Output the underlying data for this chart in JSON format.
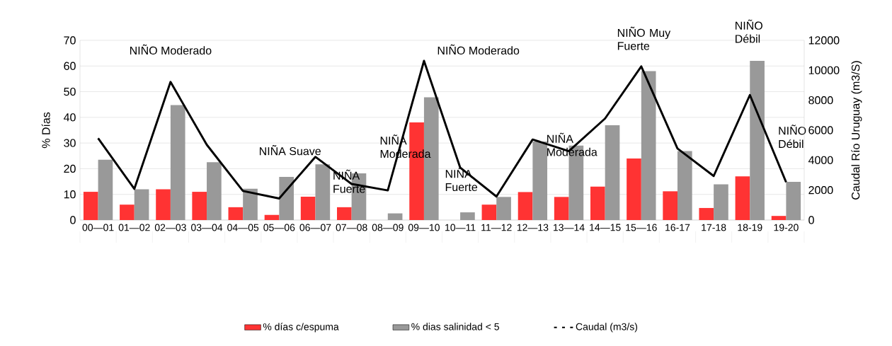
{
  "chart_data": {
    "type": "bar",
    "ylabel": "% Días",
    "y2label": "Caudal Río Uruguay  (m3/S)",
    "categories": [
      "00—01",
      "01—02",
      "02—03",
      "03—04",
      "04—05",
      "05—06",
      "06—07",
      "07—08",
      "08—09",
      "09—10",
      "10—11",
      "11—12",
      "12—13",
      "13—14",
      "14—15",
      "15—16",
      "16-17",
      "17-18",
      "18-19",
      "19-20"
    ],
    "series": [
      {
        "name": "% días c/espuma",
        "color": "#ff3333",
        "values": [
          11,
          6,
          12,
          11,
          5,
          2,
          9.1,
          5,
          null,
          38,
          null,
          6,
          10.9,
          9,
          13,
          24,
          11.2,
          4.7,
          17,
          1.6
        ]
      },
      {
        "name": "% dias salinidad < 5",
        "color": "#999999",
        "values": [
          23.5,
          12,
          44.8,
          22.5,
          12.2,
          16.8,
          21.7,
          18.2,
          2.6,
          47.8,
          3,
          9,
          30.6,
          29,
          36.9,
          58,
          26.9,
          13.9,
          62,
          14.9
        ]
      },
      {
        "name": "Caudal (m3/s)",
        "color": "#000000",
        "type": "line",
        "axis": "y2",
        "values": [
          5460,
          2080,
          9220,
          5030,
          1940,
          1440,
          4220,
          2410,
          1980,
          10630,
          3500,
          1570,
          5380,
          4600,
          6780,
          10260,
          4780,
          2940,
          8350,
          2530
        ]
      }
    ],
    "ylim": [
      0,
      70
    ],
    "yticks": [
      0,
      10,
      20,
      30,
      40,
      50,
      60,
      70
    ],
    "y2lim": [
      0,
      12000
    ],
    "y2ticks": [
      0,
      2000,
      4000,
      6000,
      8000,
      10000,
      12000
    ],
    "grid": "y",
    "legend": "bottom",
    "annotations": [
      "NIÑO Moderado",
      "NIÑA Suave",
      "NIÑA Fuerte",
      "NIÑA Moderada",
      "NIÑO Moderado",
      "NIÑA Fuerte",
      "NIÑA Moderada",
      "NIÑO Muy Fuerte",
      "NIÑO Débil",
      "NIÑO Débil"
    ]
  }
}
